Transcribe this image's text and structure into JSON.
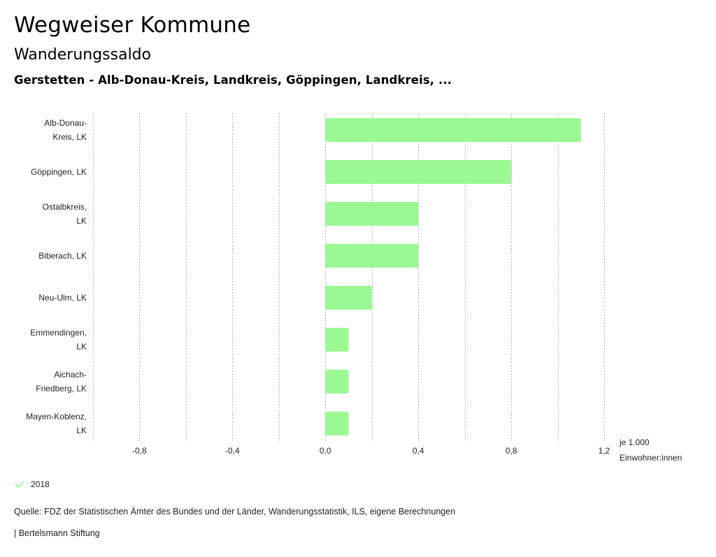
{
  "header": {
    "title": "Wegweiser Kommune",
    "subtitle": "Wanderungssaldo",
    "selection": "Gerstetten - Alb-Donau-Kreis, Landkreis, Göppingen, Landkreis, ..."
  },
  "chart_data": {
    "type": "bar",
    "orientation": "horizontal",
    "title": "Wanderungssaldo",
    "categories": [
      [
        "Alb-Donau-",
        "Kreis, LK"
      ],
      [
        "Göppingen, LK"
      ],
      [
        "Ostalbkreis,",
        "LK"
      ],
      [
        "Biberach, LK"
      ],
      [
        "Neu-Ulm, LK"
      ],
      [
        "Emmendingen,",
        "LK"
      ],
      [
        "Aichach-",
        "Friedberg, LK"
      ],
      [
        "Mayen-Koblenz,",
        "LK"
      ]
    ],
    "series": [
      {
        "name": "2018",
        "color": "#9af993",
        "values": [
          1.1,
          0.8,
          0.4,
          0.4,
          0.2,
          0.1,
          0.1,
          0.1
        ]
      }
    ],
    "xlim": [
      -1.0,
      1.2
    ],
    "grid_values": [
      -1.0,
      -0.8,
      -0.6,
      -0.4,
      -0.2,
      0.0,
      0.2,
      0.4,
      0.6,
      0.8,
      1.0,
      1.2
    ],
    "ticks": [
      {
        "value": -0.8,
        "label": "-0,8"
      },
      {
        "value": -0.4,
        "label": "-0,4"
      },
      {
        "value": 0.0,
        "label": "0,0"
      },
      {
        "value": 0.4,
        "label": "0,4"
      },
      {
        "value": 0.8,
        "label": "0,8"
      },
      {
        "value": 1.2,
        "label": "1,2"
      }
    ],
    "xlabel": [
      "je 1.000",
      "Einwohner:innen"
    ],
    "grid": true,
    "legend_position": "bottom-left"
  },
  "legend": {
    "label": "2018",
    "icon": "check-icon",
    "color": "#9af993"
  },
  "footer": {
    "source": "Quelle: FDZ der Statistischen Ämter des Bundes und der Länder, Wanderungsstatistik, ILS, eigene Berechnungen",
    "credit": "| Bertelsmann Stiftung"
  }
}
